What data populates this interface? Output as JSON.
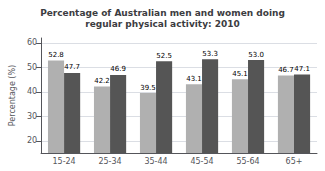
{
  "chart_data": {
    "type": "bar",
    "title": "Percentage of Australian men and women doing\nregular physical activity: 2010",
    "ylabel": "Percentage (%)",
    "categories": [
      "15-24",
      "25-34",
      "35-44",
      "45-54",
      "55-64",
      "65+"
    ],
    "series": [
      {
        "color": "#b0b0b0",
        "values": [
          52.8,
          42.2,
          39.5,
          43.1,
          45.1,
          46.7
        ],
        "value_labels": [
          "52.8",
          "42.2",
          "39.5",
          "43.1",
          "45.1",
          "46.7"
        ]
      },
      {
        "color": "#555555",
        "values": [
          47.7,
          46.9,
          52.5,
          53.3,
          53.0,
          47.1
        ],
        "value_labels": [
          "47.7",
          "46.9",
          "52.5",
          "53.3",
          "53.0",
          "47.1"
        ]
      }
    ],
    "ylim": [
      15,
      62
    ],
    "yticks": [
      20,
      30,
      40,
      50,
      60
    ],
    "grid": true,
    "data_labels": true
  }
}
